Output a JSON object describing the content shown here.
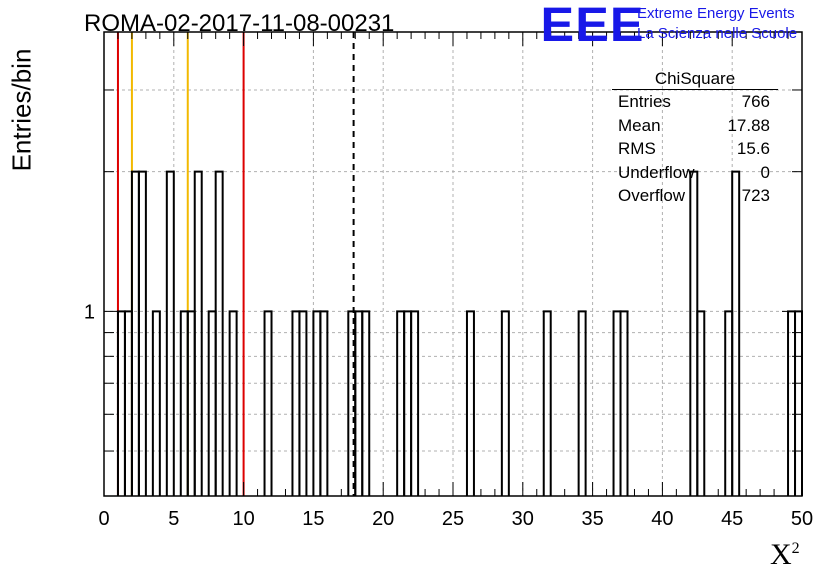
{
  "title": "ROMA-02-2017-11-08-00231",
  "logo": {
    "mark": "EEE",
    "line1": "Extreme Energy Events",
    "line2": "La Scienza nelle Scuole",
    "color": "#1818e8"
  },
  "stats_box": {
    "title": "ChiSquare",
    "rows": [
      {
        "label": "Entries",
        "value": "766"
      },
      {
        "label": "Mean",
        "value": "17.88"
      },
      {
        "label": "RMS",
        "value": "15.6"
      },
      {
        "label": "Underflow",
        "value": "0"
      },
      {
        "label": "Overflow",
        "value": "723"
      }
    ]
  },
  "chart_data": {
    "type": "step-histogram",
    "xlabel": "X",
    "xlabel_superscript": "2",
    "ylabel": "Entries/bin",
    "xlim": [
      0,
      50
    ],
    "y_scale": "log",
    "ylim": [
      0.4,
      4
    ],
    "x_ticks": [
      0,
      5,
      10,
      15,
      20,
      25,
      30,
      35,
      40,
      45,
      50
    ],
    "y_tick_labels": [
      {
        "value": 1,
        "label": "1"
      }
    ],
    "grid": true,
    "bin_width": 0.5,
    "bins": [
      {
        "x": 1.0,
        "count": 1
      },
      {
        "x": 1.5,
        "count": 1
      },
      {
        "x": 2.0,
        "count": 2
      },
      {
        "x": 2.5,
        "count": 2
      },
      {
        "x": 3.5,
        "count": 1
      },
      {
        "x": 4.5,
        "count": 2
      },
      {
        "x": 5.5,
        "count": 1
      },
      {
        "x": 6.0,
        "count": 1
      },
      {
        "x": 6.5,
        "count": 2
      },
      {
        "x": 7.5,
        "count": 1
      },
      {
        "x": 8.0,
        "count": 2
      },
      {
        "x": 9.0,
        "count": 1
      },
      {
        "x": 11.5,
        "count": 1
      },
      {
        "x": 13.5,
        "count": 1
      },
      {
        "x": 14.0,
        "count": 1
      },
      {
        "x": 15.0,
        "count": 1
      },
      {
        "x": 15.5,
        "count": 1
      },
      {
        "x": 17.5,
        "count": 1
      },
      {
        "x": 18.0,
        "count": 1
      },
      {
        "x": 18.5,
        "count": 1
      },
      {
        "x": 21.0,
        "count": 1
      },
      {
        "x": 21.5,
        "count": 1
      },
      {
        "x": 22.0,
        "count": 1
      },
      {
        "x": 26.0,
        "count": 1
      },
      {
        "x": 28.5,
        "count": 1
      },
      {
        "x": 31.5,
        "count": 1
      },
      {
        "x": 34.0,
        "count": 1
      },
      {
        "x": 36.5,
        "count": 1
      },
      {
        "x": 37.0,
        "count": 1
      },
      {
        "x": 42.0,
        "count": 2
      },
      {
        "x": 42.5,
        "count": 1
      },
      {
        "x": 44.5,
        "count": 1
      },
      {
        "x": 45.0,
        "count": 2
      },
      {
        "x": 49.0,
        "count": 1
      },
      {
        "x": 49.5,
        "count": 1
      }
    ],
    "reference_lines": [
      {
        "x": 1,
        "color": "#dd0000",
        "style": "solid"
      },
      {
        "x": 2,
        "color": "#f2b900",
        "style": "solid"
      },
      {
        "x": 6,
        "color": "#f2b900",
        "style": "solid"
      },
      {
        "x": 10,
        "color": "#dd0000",
        "style": "solid"
      },
      {
        "x": 17.88,
        "color": "#000000",
        "style": "dashed"
      }
    ]
  }
}
